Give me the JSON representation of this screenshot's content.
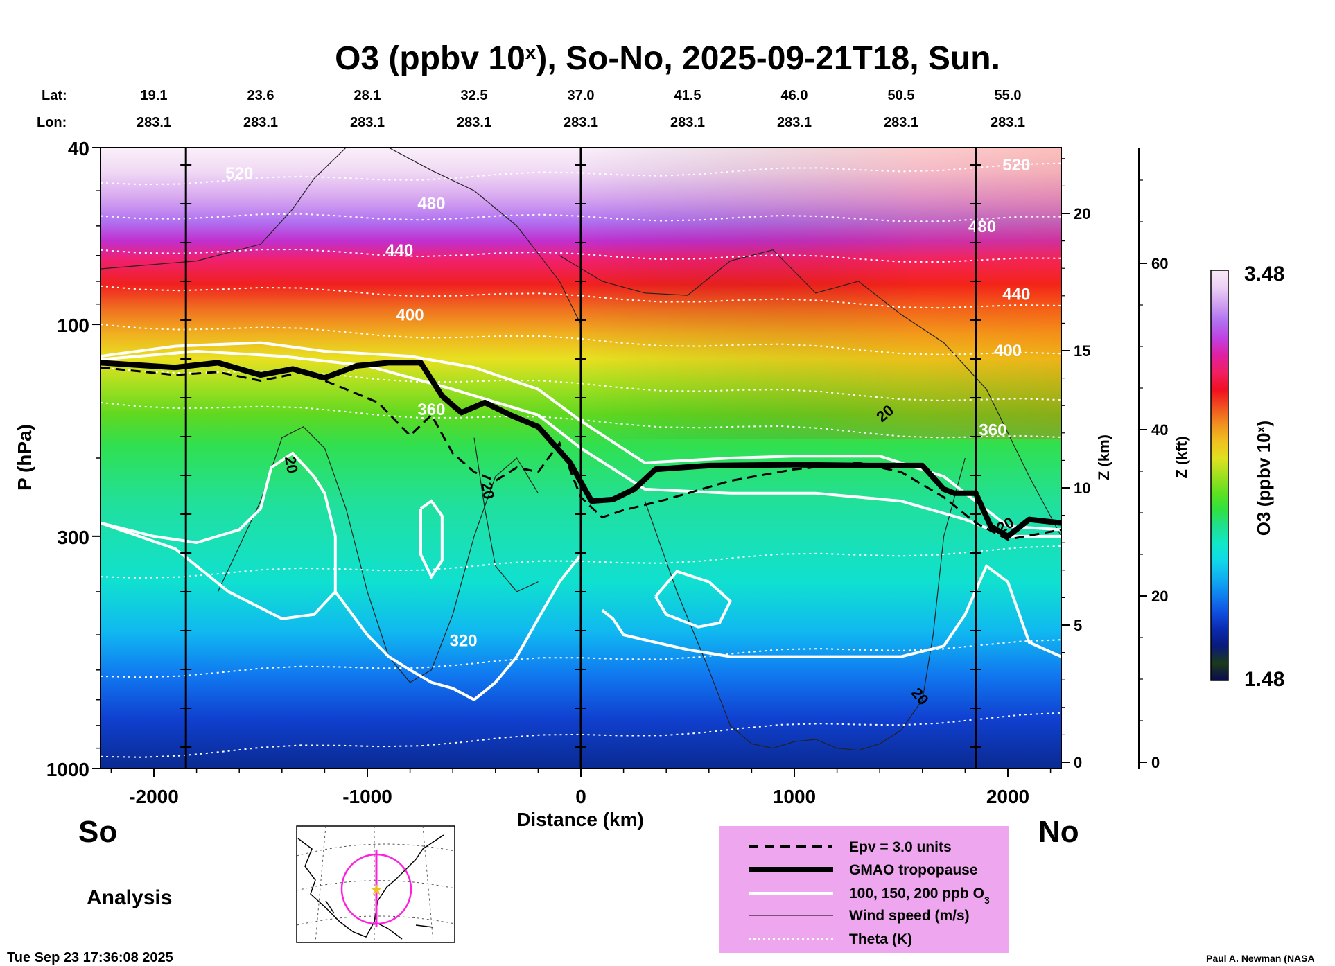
{
  "chart_data": {
    "type": "heatmap",
    "title": {
      "prefix": "O3 (ppbv 10",
      "sup": "x",
      "suffix": "), So-No, 2025-09-21T18, Sun."
    },
    "xlabel": "Distance (km)",
    "ylabel": "P (hPa)",
    "ylabel_right_km": "Z (km)",
    "ylabel_right_kft": "Z (kft)",
    "xlim": [
      -2250,
      2250
    ],
    "ylim_hpa": [
      1000,
      40
    ],
    "x_ticks": [
      -2000,
      -1000,
      0,
      1000,
      2000
    ],
    "p_ticks": [
      40,
      100,
      300,
      1000
    ],
    "z_km_ticks": [
      0,
      5,
      10,
      15,
      20
    ],
    "z_kft_ticks": [
      0,
      20,
      40,
      60
    ],
    "lat_label": "Lat:",
    "lon_label": "Lon:",
    "lats": [
      "19.1",
      "23.6",
      "28.1",
      "32.5",
      "37.0",
      "41.5",
      "46.0",
      "50.5",
      "55.0"
    ],
    "lons": [
      "283.1",
      "283.1",
      "283.1",
      "283.1",
      "283.1",
      "283.1",
      "283.1",
      "283.1",
      "283.1"
    ],
    "lat_lon_distance_km": [
      -2000,
      -1500,
      -1000,
      -500,
      0,
      500,
      1000,
      1500,
      2000
    ],
    "vertical_lines_km": [
      -1850,
      0,
      1850
    ],
    "colorbar": {
      "label_prefix": "O3 (ppbv 10",
      "label_sup": "x",
      "label_suffix": ")",
      "max_label": "3.48",
      "min_label": "1.48",
      "max": 3.48,
      "min": 1.48,
      "colors": [
        "#0a0a50",
        "#1a3a1a",
        "#0a1a7a",
        "#0a2ab0",
        "#1050e0",
        "#1080f0",
        "#10b0f0",
        "#10d8e8",
        "#10e8c8",
        "#20e090",
        "#30e040",
        "#60e020",
        "#a0e020",
        "#e0e020",
        "#f0c020",
        "#f09020",
        "#f05020",
        "#f01020",
        "#f02060",
        "#e020a0",
        "#c040e0",
        "#b070f0",
        "#d0a0f0",
        "#ecd0f4",
        "#f8eaf8"
      ]
    },
    "theta_labels": [
      {
        "text": "520",
        "x_km": -1600,
        "p_hpa": 47
      },
      {
        "text": "480",
        "x_km": -700,
        "p_hpa": 55
      },
      {
        "text": "440",
        "x_km": -850,
        "p_hpa": 70
      },
      {
        "text": "400",
        "x_km": -800,
        "p_hpa": 98
      },
      {
        "text": "360",
        "x_km": -700,
        "p_hpa": 160
      },
      {
        "text": "320",
        "x_km": -550,
        "p_hpa": 530
      },
      {
        "text": "520",
        "x_km": 2040,
        "p_hpa": 45
      },
      {
        "text": "480",
        "x_km": 1880,
        "p_hpa": 62
      },
      {
        "text": "440",
        "x_km": 2040,
        "p_hpa": 88
      },
      {
        "text": "400",
        "x_km": 2000,
        "p_hpa": 118
      },
      {
        "text": "360",
        "x_km": 1930,
        "p_hpa": 178
      }
    ],
    "wind_labels": [
      {
        "text": "20",
        "x_km": -1380,
        "p_hpa": 208,
        "angle": 80
      },
      {
        "text": "20",
        "x_km": -460,
        "p_hpa": 238,
        "angle": 80
      },
      {
        "text": "20",
        "x_km": 1440,
        "p_hpa": 162,
        "angle": -40
      },
      {
        "text": "20",
        "x_km": 1570,
        "p_hpa": 700,
        "angle": 50
      },
      {
        "text": "20",
        "x_km": 2000,
        "p_hpa": 290,
        "angle": -30
      }
    ],
    "tropopause": {
      "x_km": [
        -2250,
        -1900,
        -1700,
        -1500,
        -1350,
        -1200,
        -1050,
        -900,
        -750,
        -650,
        -560,
        -450,
        -330,
        -200,
        -50,
        50,
        150,
        250,
        350,
        600,
        1000,
        1350,
        1600,
        1700,
        1750,
        1850,
        1920,
        2000,
        2100,
        2250
      ],
      "p_hpa": [
        122,
        125,
        122,
        130,
        126,
        132,
        124,
        122,
        122,
        145,
        158,
        150,
        160,
        170,
        205,
        250,
        248,
        235,
        212,
        208,
        207,
        208,
        208,
        235,
        240,
        240,
        285,
        300,
        275,
        280
      ]
    },
    "epv": {
      "x_km": [
        -2250,
        -1900,
        -1700,
        -1500,
        -1300,
        -1100,
        -950,
        -800,
        -700,
        -600,
        -500,
        -400,
        -300,
        -200,
        -100,
        0,
        100,
        200,
        400,
        700,
        1000,
        1300,
        1500,
        1700,
        1850,
        2000,
        2250
      ],
      "p_hpa": [
        125,
        130,
        128,
        134,
        128,
        140,
        150,
        178,
        160,
        195,
        215,
        225,
        210,
        215,
        185,
        245,
        272,
        262,
        248,
        225,
        212,
        205,
        215,
        245,
        280,
        305,
        290
      ]
    },
    "ozone_contours": [
      {
        "name": "100 ppb",
        "x_km": [
          -2250,
          -1800,
          -1400,
          -1000,
          -600,
          -200,
          0,
          300,
          700,
          1100,
          1500,
          1800,
          2000,
          2250
        ],
        "p_hpa": [
          120,
          115,
          118,
          124,
          140,
          160,
          190,
          235,
          240,
          240,
          250,
          275,
          300,
          300
        ]
      },
      {
        "name": "200 ppb",
        "x_km": [
          -2250,
          -1900,
          -1500,
          -1200,
          -800,
          -500,
          -200,
          0,
          300,
          700,
          1000,
          1400,
          1700,
          2000,
          2250
        ],
        "p_hpa": [
          118,
          112,
          110,
          115,
          118,
          125,
          140,
          165,
          205,
          200,
          198,
          198,
          220,
          285,
          290
        ]
      }
    ],
    "legend": [
      {
        "label": "Epv = 3.0 units",
        "style": "dashed"
      },
      {
        "label": "GMAO tropopause",
        "style": "thick"
      },
      {
        "label": "100, 150, 200 ppb O",
        "sub": "3",
        "style": "white"
      },
      {
        "label": "Wind speed (m/s)",
        "style": "thin"
      },
      {
        "label": "Theta (K)",
        "style": "dotted"
      }
    ]
  },
  "corner_labels": {
    "south": "So",
    "north": "No",
    "analysis": "Analysis",
    "timestamp": "Tue Sep 23 17:36:08 2025",
    "credit": "Paul A. Newman (NASA"
  },
  "inset_map": {
    "circle_color": "#ff22dd",
    "star_color": "#f0c020"
  },
  "colors": {
    "legend_bg": "#eea6ee",
    "theta": "#ffffff",
    "tropopause": "#000000"
  }
}
